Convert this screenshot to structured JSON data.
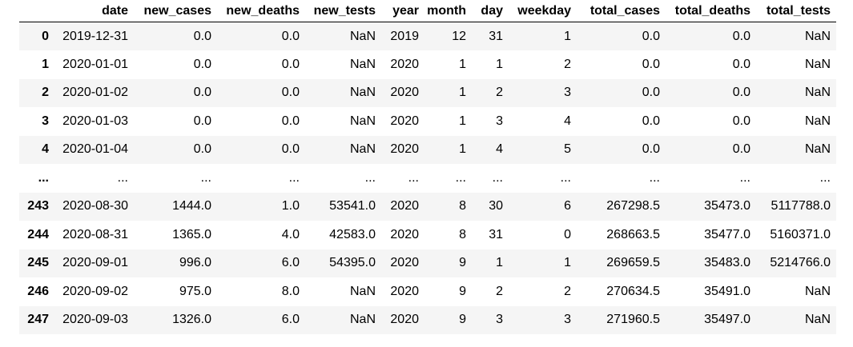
{
  "table": {
    "columns": [
      "",
      "date",
      "new_cases",
      "new_deaths",
      "new_tests",
      "year",
      "month",
      "day",
      "weekday",
      "total_cases",
      "total_deaths",
      "total_tests"
    ],
    "rows": [
      [
        "0",
        "2019-12-31",
        "0.0",
        "0.0",
        "NaN",
        "2019",
        "12",
        "31",
        "1",
        "0.0",
        "0.0",
        "NaN"
      ],
      [
        "1",
        "2020-01-01",
        "0.0",
        "0.0",
        "NaN",
        "2020",
        "1",
        "1",
        "2",
        "0.0",
        "0.0",
        "NaN"
      ],
      [
        "2",
        "2020-01-02",
        "0.0",
        "0.0",
        "NaN",
        "2020",
        "1",
        "2",
        "3",
        "0.0",
        "0.0",
        "NaN"
      ],
      [
        "3",
        "2020-01-03",
        "0.0",
        "0.0",
        "NaN",
        "2020",
        "1",
        "3",
        "4",
        "0.0",
        "0.0",
        "NaN"
      ],
      [
        "4",
        "2020-01-04",
        "0.0",
        "0.0",
        "NaN",
        "2020",
        "1",
        "4",
        "5",
        "0.0",
        "0.0",
        "NaN"
      ],
      [
        "...",
        "...",
        "...",
        "...",
        "...",
        "...",
        "...",
        "...",
        "...",
        "...",
        "...",
        "..."
      ],
      [
        "243",
        "2020-08-30",
        "1444.0",
        "1.0",
        "53541.0",
        "2020",
        "8",
        "30",
        "6",
        "267298.5",
        "35473.0",
        "5117788.0"
      ],
      [
        "244",
        "2020-08-31",
        "1365.0",
        "4.0",
        "42583.0",
        "2020",
        "8",
        "31",
        "0",
        "268663.5",
        "35477.0",
        "5160371.0"
      ],
      [
        "245",
        "2020-09-01",
        "996.0",
        "6.0",
        "54395.0",
        "2020",
        "9",
        "1",
        "1",
        "269659.5",
        "35483.0",
        "5214766.0"
      ],
      [
        "246",
        "2020-09-02",
        "975.0",
        "8.0",
        "NaN",
        "2020",
        "9",
        "2",
        "2",
        "270634.5",
        "35491.0",
        "NaN"
      ],
      [
        "247",
        "2020-09-03",
        "1326.0",
        "6.0",
        "NaN",
        "2020",
        "9",
        "3",
        "3",
        "271960.5",
        "35497.0",
        "NaN"
      ]
    ]
  }
}
